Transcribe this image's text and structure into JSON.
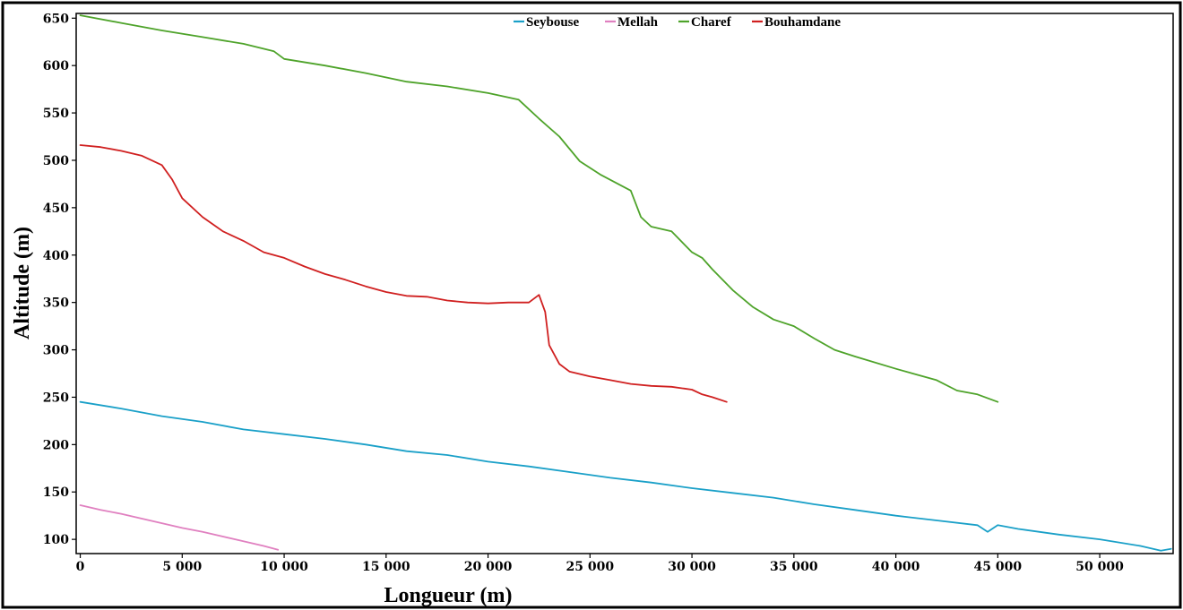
{
  "chart_data": {
    "type": "line",
    "title": "",
    "xlabel": "Longueur (m)",
    "ylabel": "Altitude (m)",
    "xlim": [
      -200,
      53600
    ],
    "ylim": [
      85,
      655
    ],
    "grid": false,
    "legend_placement": "top-center",
    "x_ticks": [
      {
        "value": 0,
        "label": "0"
      },
      {
        "value": 5000,
        "label": "5 000"
      },
      {
        "value": 10000,
        "label": "10 000"
      },
      {
        "value": 15000,
        "label": "15 000"
      },
      {
        "value": 20000,
        "label": "20 000"
      },
      {
        "value": 25000,
        "label": "25 000"
      },
      {
        "value": 30000,
        "label": "30 000"
      },
      {
        "value": 35000,
        "label": "35 000"
      },
      {
        "value": 40000,
        "label": "40 000"
      },
      {
        "value": 45000,
        "label": "45 000"
      },
      {
        "value": 50000,
        "label": "50 000"
      }
    ],
    "y_ticks": [
      {
        "value": 100,
        "label": "100"
      },
      {
        "value": 150,
        "label": "150"
      },
      {
        "value": 200,
        "label": "200"
      },
      {
        "value": 250,
        "label": "250"
      },
      {
        "value": 300,
        "label": "300"
      },
      {
        "value": 350,
        "label": "350"
      },
      {
        "value": 400,
        "label": "400"
      },
      {
        "value": 450,
        "label": "450"
      },
      {
        "value": 500,
        "label": "500"
      },
      {
        "value": 550,
        "label": "550"
      },
      {
        "value": 600,
        "label": "600"
      },
      {
        "value": 650,
        "label": "650"
      }
    ],
    "series": [
      {
        "name": "Seybouse",
        "color": "#1aa0c8",
        "x": [
          0,
          2000,
          4000,
          6000,
          8000,
          10000,
          12000,
          14000,
          16000,
          18000,
          20000,
          22000,
          24000,
          26000,
          28000,
          30000,
          32000,
          34000,
          36000,
          38000,
          40000,
          42000,
          44000,
          44500,
          45000,
          46000,
          48000,
          50000,
          52000,
          53000,
          53500
        ],
        "y": [
          245,
          238,
          230,
          224,
          216,
          211,
          206,
          200,
          193,
          189,
          182,
          177,
          171,
          165,
          160,
          154,
          149,
          144,
          137,
          131,
          125,
          120,
          115,
          108,
          115,
          111,
          105,
          100,
          93,
          88,
          90
        ]
      },
      {
        "name": "Mellah",
        "color": "#e080c0",
        "x": [
          0,
          1000,
          2000,
          3000,
          4000,
          5000,
          6000,
          7000,
          8000,
          9000,
          9700
        ],
        "y": [
          136,
          131,
          127,
          122,
          117,
          112,
          108,
          103,
          98,
          93,
          89
        ]
      },
      {
        "name": "Charef",
        "color": "#4ea32a",
        "x": [
          0,
          2000,
          4000,
          6000,
          8000,
          9500,
          10000,
          12000,
          14000,
          16000,
          18000,
          20000,
          21500,
          22500,
          23500,
          24500,
          25500,
          27000,
          27500,
          28000,
          29000,
          30000,
          30500,
          31000,
          32000,
          33000,
          34000,
          35000,
          36000,
          37000,
          38000,
          40000,
          42000,
          43000,
          44000,
          45000
        ],
        "y": [
          653,
          645,
          637,
          630,
          623,
          615,
          607,
          600,
          592,
          583,
          578,
          571,
          564,
          544,
          525,
          499,
          485,
          468,
          440,
          430,
          425,
          403,
          397,
          385,
          363,
          345,
          332,
          325,
          312,
          300,
          293,
          280,
          268,
          257,
          253,
          245
        ]
      },
      {
        "name": "Bouhamdane",
        "color": "#d02020",
        "x": [
          0,
          1000,
          2000,
          3000,
          4000,
          4500,
          5000,
          6000,
          7000,
          8000,
          9000,
          10000,
          11000,
          12000,
          13000,
          14000,
          15000,
          16000,
          17000,
          18000,
          19000,
          20000,
          21000,
          22000,
          22500,
          22800,
          23000,
          23500,
          24000,
          25000,
          26000,
          27000,
          28000,
          29000,
          30000,
          30500,
          31000,
          31700
        ],
        "y": [
          516,
          514,
          510,
          505,
          495,
          480,
          460,
          440,
          425,
          415,
          403,
          397,
          388,
          380,
          374,
          367,
          361,
          357,
          356,
          352,
          350,
          349,
          350,
          350,
          358,
          340,
          305,
          285,
          277,
          272,
          268,
          264,
          262,
          261,
          258,
          253,
          250,
          245
        ]
      }
    ]
  }
}
